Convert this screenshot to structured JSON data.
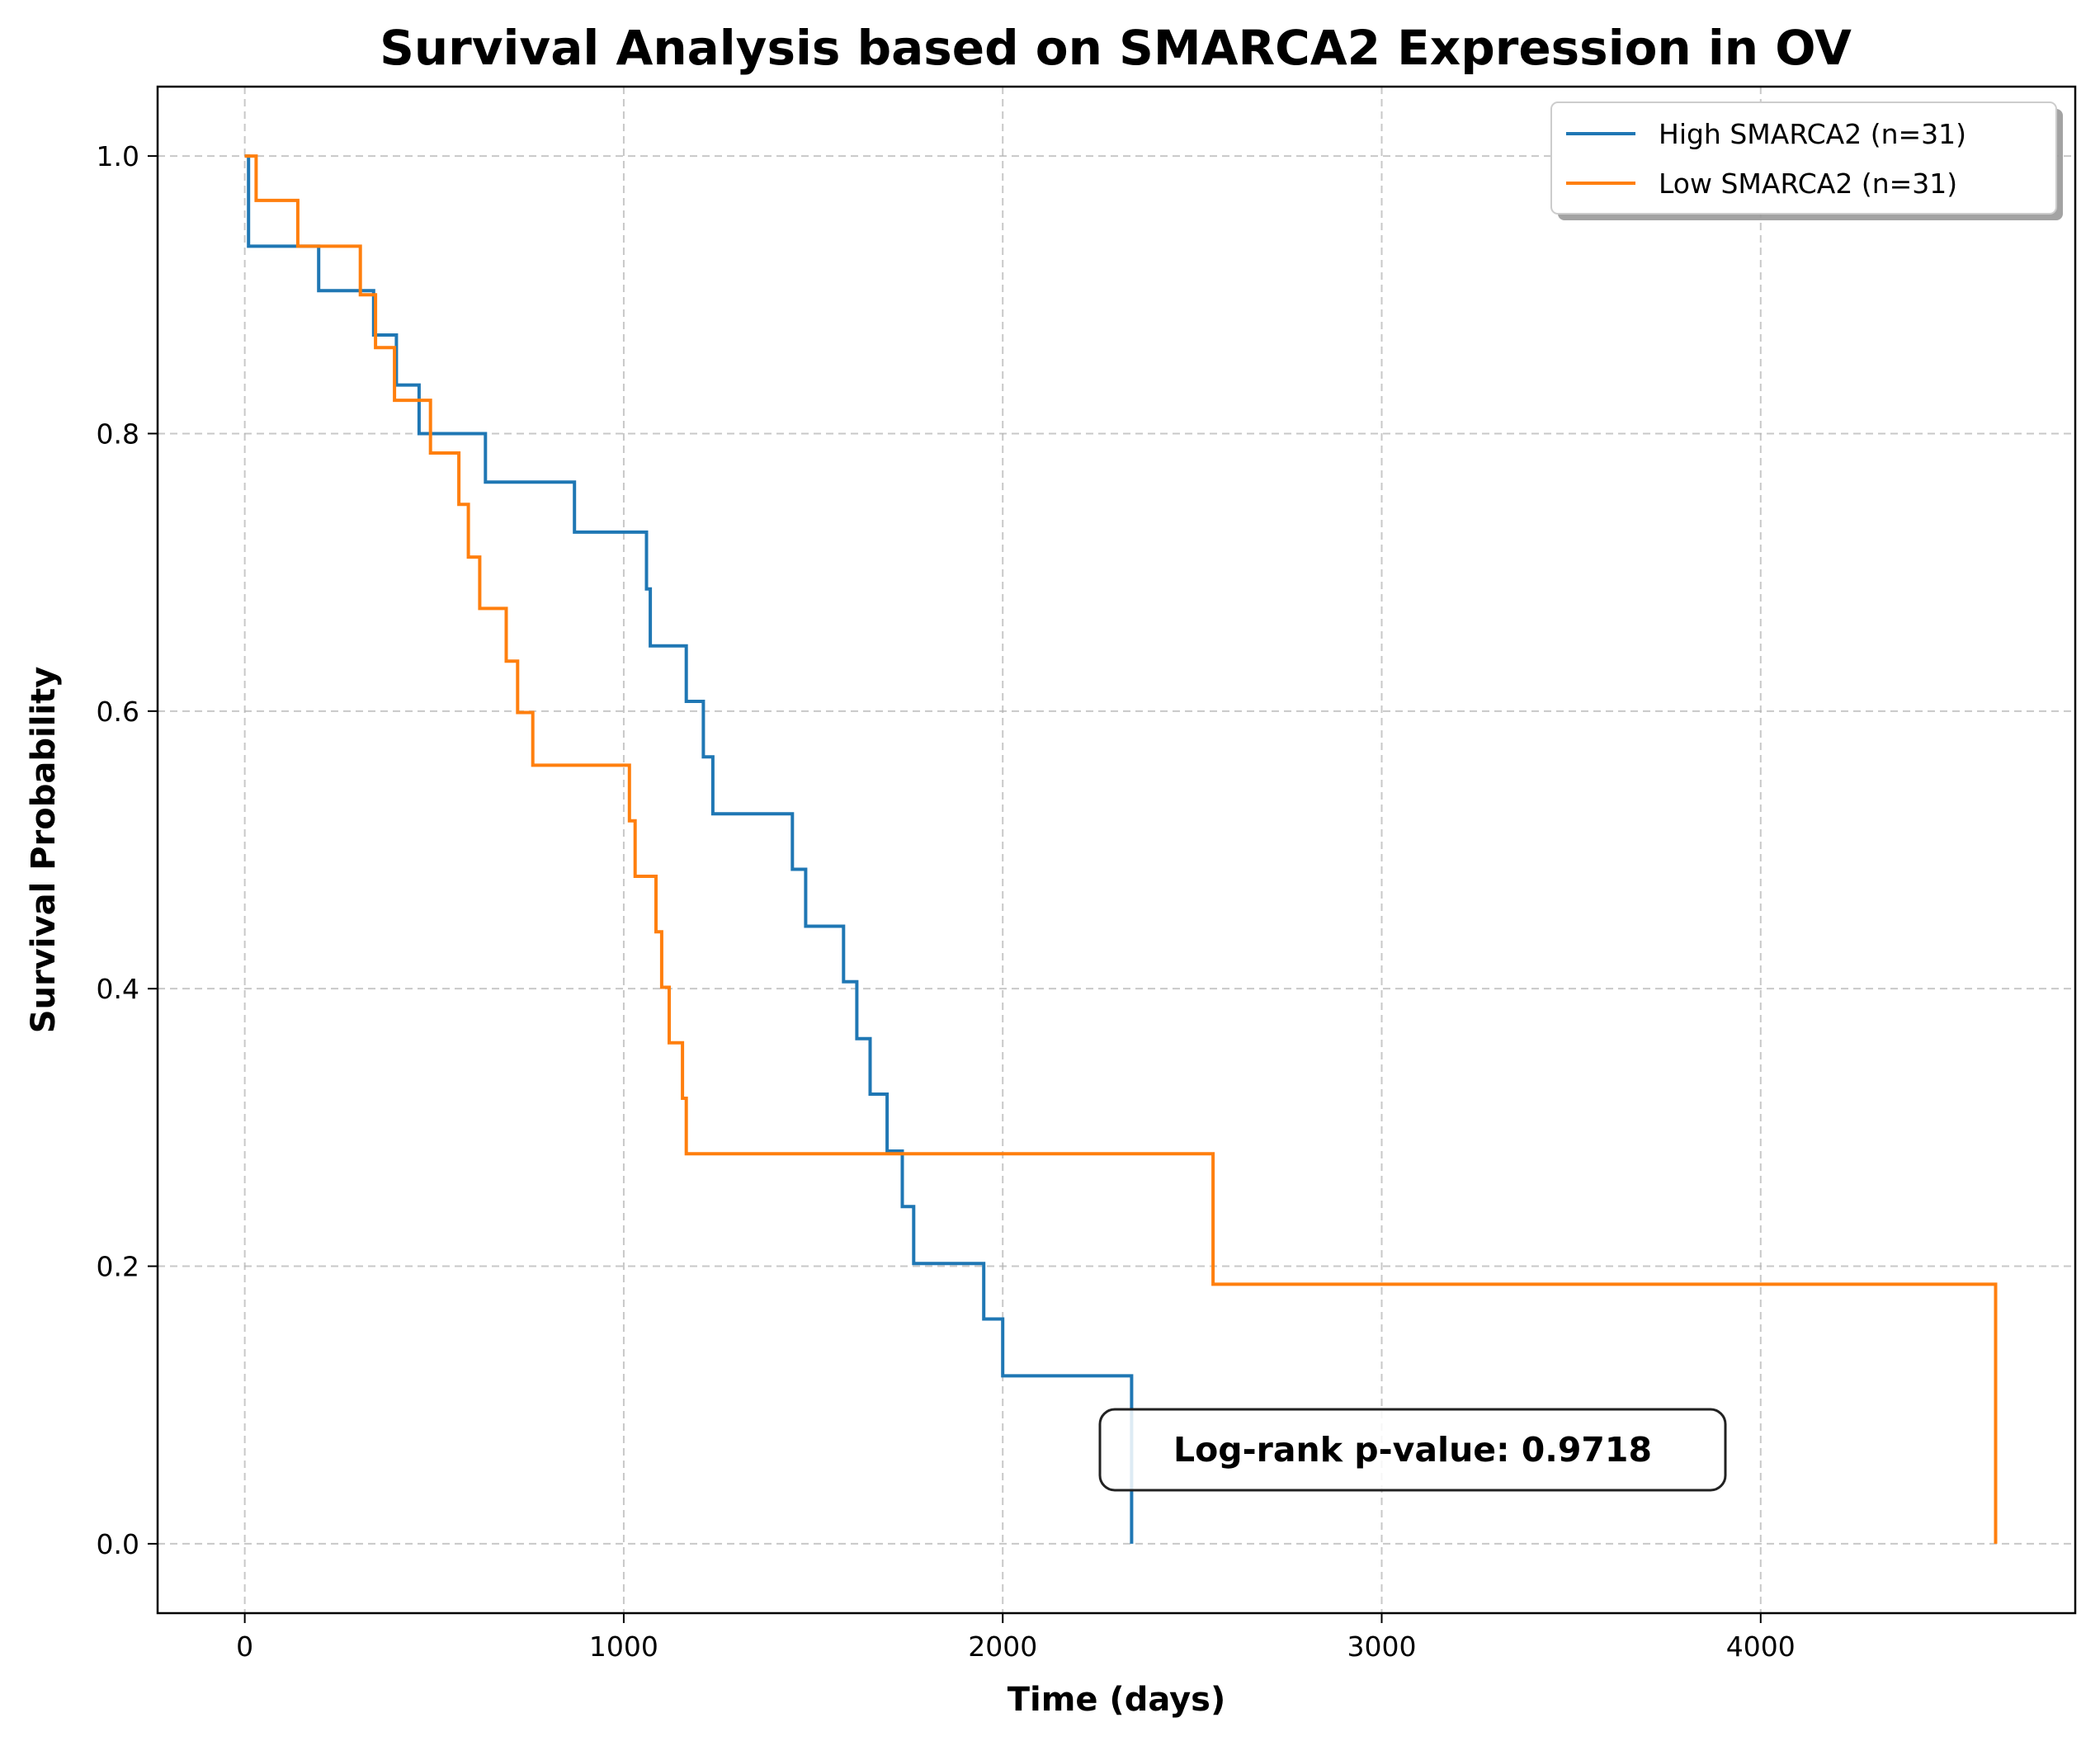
{
  "chart_data": {
    "type": "line",
    "step": true,
    "title": "Survival Analysis based on SMARCA2 Expression in OV",
    "xlabel": "Time (days)",
    "ylabel": "Survival Probability",
    "xlim": [
      -230,
      4830
    ],
    "ylim": [
      -0.05,
      1.05
    ],
    "xticks": [
      0,
      1000,
      2000,
      3000,
      4000
    ],
    "xtick_labels": [
      "0",
      "1000",
      "2000",
      "3000",
      "4000"
    ],
    "yticks": [
      0.0,
      0.2,
      0.4,
      0.6,
      0.8,
      1.0
    ],
    "ytick_labels": [
      "0.0",
      "0.2",
      "0.4",
      "0.6",
      "0.8",
      "1.0"
    ],
    "grid": true,
    "legend_position": "top-right",
    "series": [
      {
        "name": "High SMARCA2 (n=31)",
        "color": "#1f77b4",
        "x": [
          0,
          10,
          195,
          340,
          400,
          460,
          635,
          870,
          1060,
          1070,
          1165,
          1210,
          1235,
          1445,
          1480,
          1580,
          1615,
          1650,
          1695,
          1735,
          1765,
          1950,
          2000,
          2340,
          2340
        ],
        "y": [
          1.0,
          0.935,
          0.903,
          0.871,
          0.835,
          0.8,
          0.765,
          0.729,
          0.688,
          0.647,
          0.607,
          0.567,
          0.526,
          0.486,
          0.445,
          0.405,
          0.364,
          0.324,
          0.283,
          0.243,
          0.202,
          0.162,
          0.121,
          0.121,
          0.0
        ]
      },
      {
        "name": "Low SMARCA2 (n=31)",
        "color": "#ff7f0e",
        "x": [
          0,
          30,
          140,
          305,
          345,
          395,
          490,
          565,
          590,
          620,
          690,
          720,
          760,
          1015,
          1030,
          1085,
          1100,
          1120,
          1155,
          1165,
          2555,
          4620,
          4620
        ],
        "y": [
          1.0,
          0.968,
          0.935,
          0.9,
          0.862,
          0.824,
          0.786,
          0.749,
          0.711,
          0.674,
          0.636,
          0.599,
          0.561,
          0.521,
          0.481,
          0.441,
          0.401,
          0.361,
          0.321,
          0.281,
          0.187,
          0.187,
          0.0
        ]
      }
    ],
    "annotation": "Log-rank p-value: 0.9718"
  }
}
